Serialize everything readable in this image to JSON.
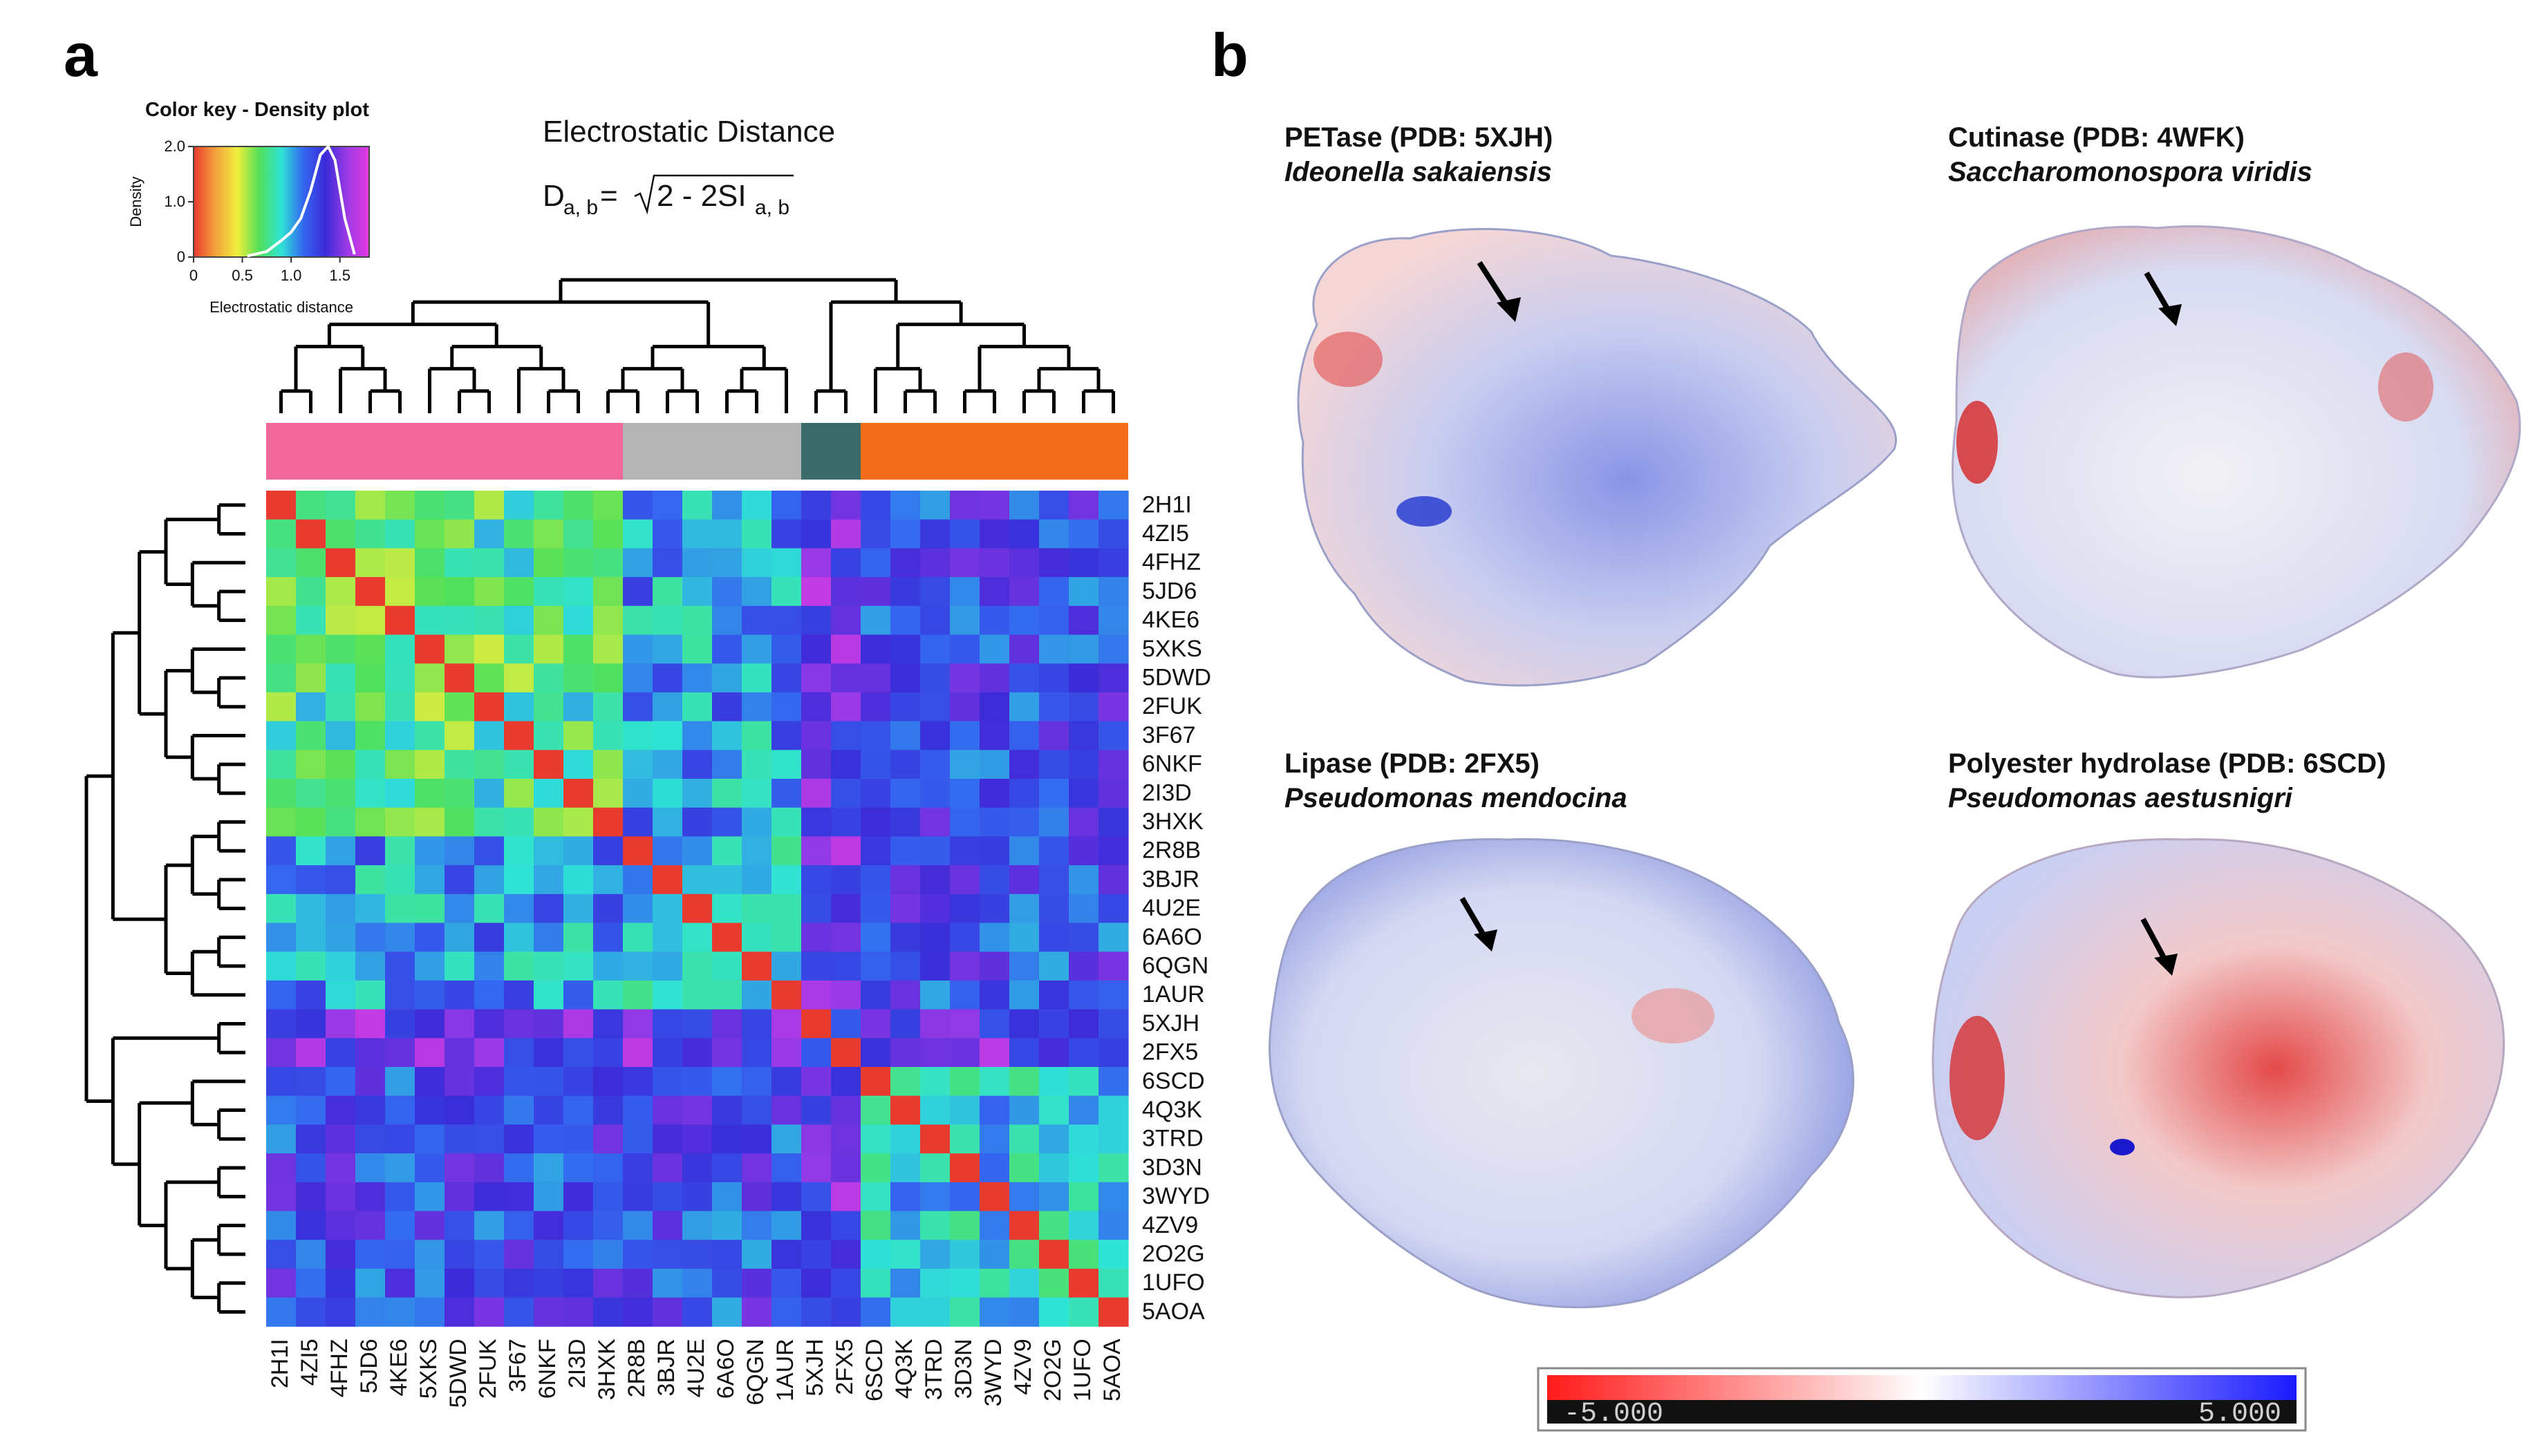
{
  "panel_a": {
    "label": "a",
    "color_key": {
      "title": "Color key - Density plot",
      "ylabel": "Density",
      "xlabel": "Electrostatic distance",
      "y_ticks": [
        "0",
        "1.0",
        "2.0"
      ],
      "x_ticks": [
        "0",
        "0.5",
        "1.0",
        "1.5"
      ],
      "density_curve_x": [
        0.55,
        0.75,
        0.9,
        1.0,
        1.1,
        1.2,
        1.3,
        1.38,
        1.45,
        1.55,
        1.65
      ],
      "density_curve_y": [
        0.02,
        0.1,
        0.3,
        0.45,
        0.7,
        1.2,
        1.85,
        2.0,
        1.75,
        0.7,
        0.05
      ],
      "x_range": [
        0,
        1.8
      ],
      "y_range": [
        0,
        2.0
      ],
      "gradient": [
        "#e83a2e",
        "#f3a33c",
        "#f0ef3c",
        "#52e05a",
        "#2fe3d6",
        "#3467f0",
        "#3a2bd8",
        "#9a3ae6",
        "#e53ae0"
      ]
    },
    "heading": "Electrostatic Distance",
    "formula": {
      "lhs": "D",
      "lhs_sub": "a, b",
      "eq": " = ",
      "root": "2 - 2SI",
      "root_sub": "a, b"
    }
  },
  "chart_data": {
    "type": "heatmap",
    "title": "Electrostatic Distance",
    "row_labels": [
      "2H1I",
      "4ZI5",
      "4FHZ",
      "5JD6",
      "4KE6",
      "5XKS",
      "5DWD",
      "2FUK",
      "3F67",
      "6NKF",
      "2I3D",
      "3HXK",
      "2R8B",
      "3BJR",
      "4U2E",
      "6A6O",
      "6QGN",
      "1AUR",
      "5XJH",
      "2FX5",
      "6SCD",
      "4Q3K",
      "3TRD",
      "3D3N",
      "3WYD",
      "4ZV9",
      "2O2G",
      "1UFO",
      "5AOA"
    ],
    "col_labels": [
      "2H1I",
      "4ZI5",
      "4FHZ",
      "5JD6",
      "4KE6",
      "5XKS",
      "5DWD",
      "2FUK",
      "3F67",
      "6NKF",
      "2I3D",
      "3HXK",
      "2R8B",
      "3BJR",
      "4U2E",
      "6A6O",
      "6QGN",
      "1AUR",
      "5XJH",
      "2FX5",
      "6SCD",
      "4Q3K",
      "3TRD",
      "3D3N",
      "3WYD",
      "4ZV9",
      "2O2G",
      "1UFO",
      "5AOA"
    ],
    "value_range": [
      0,
      1.8
    ],
    "diagonal_value": 0,
    "groups": [
      {
        "span": [
          0,
          12
        ],
        "color": "#f2689a"
      },
      {
        "span": [
          12,
          18
        ],
        "color": "#b4b4b4"
      },
      {
        "span": [
          18,
          20
        ],
        "color": "#3a6a6a"
      },
      {
        "span": [
          20,
          29
        ],
        "color": "#f26c1a"
      }
    ],
    "dendrogram_tree": [
      [
        [
          [
            [
              "2H1I",
              "4ZI5"
            ],
            [
              "4FHZ",
              [
                "5JD6",
                "4KE6"
              ]
            ]
          ],
          [
            [
              "5XKS",
              [
                "5DWD",
                "2FUK"
              ]
            ],
            [
              "3F67",
              [
                "6NKF",
                "2I3D"
              ]
            ]
          ]
        ],
        [
          [
            [
              "3HXK",
              "2R8B"
            ],
            [
              "3BJR",
              "4U2E"
            ]
          ],
          [
            [
              "6A6O",
              "6QGN"
            ],
            "1AUR"
          ]
        ]
      ],
      [
        [
          "5XJH",
          "2FX5"
        ],
        [
          [
            "6SCD",
            [
              "4Q3K",
              "3TRD"
            ]
          ],
          [
            [
              "3D3N",
              "3WYD"
            ],
            [
              [
                "4ZV9",
                "2O2G"
              ],
              [
                "1UFO",
                "5AOA"
              ]
            ]
          ]
        ]
      ]
    ]
  },
  "panel_b": {
    "label": "b",
    "structures": [
      {
        "name": "PETase (PDB: 5XJH)",
        "organism": "Ideonella sakaiensis"
      },
      {
        "name": "Cutinase (PDB: 4WFK)",
        "organism": "Saccharomonospora viridis"
      },
      {
        "name": "Lipase (PDB: 2FX5)",
        "organism": "Pseudomonas mendocina"
      },
      {
        "name": "Polyester hydrolase (PDB: 6SCD)",
        "organism": "Pseudomonas aestusnigri"
      }
    ],
    "scale_bar": {
      "min_label": "-5.000",
      "max_label": "5.000",
      "min_color": "#ff1a1a",
      "mid_color": "#ffffff",
      "max_color": "#1a1aff"
    }
  }
}
